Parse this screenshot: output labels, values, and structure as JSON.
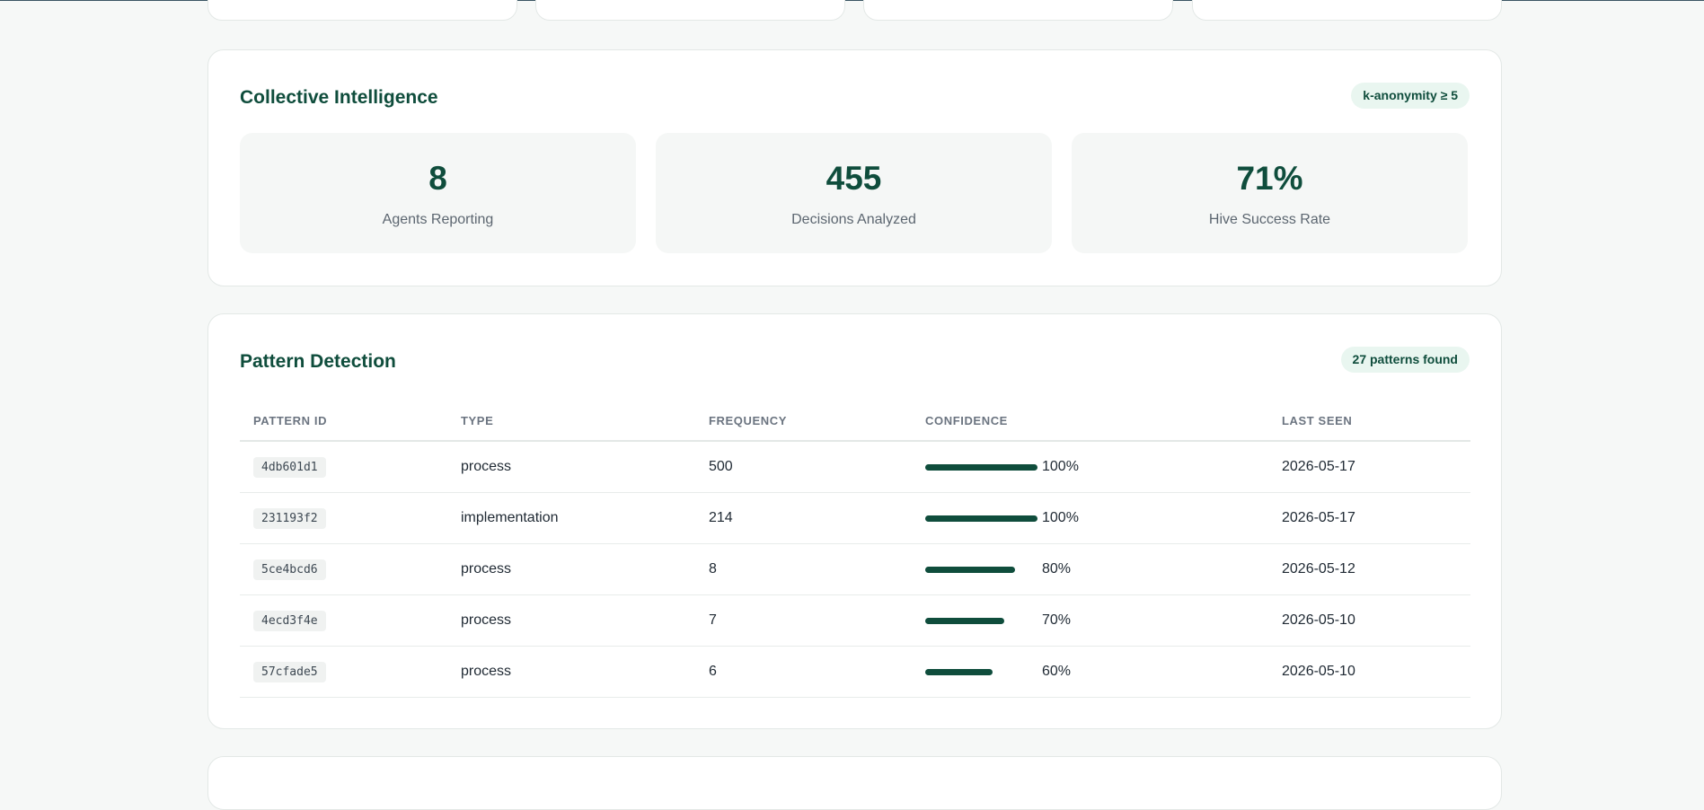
{
  "collective": {
    "title": "Collective Intelligence",
    "badge": "k-anonymity ≥ 5",
    "metrics": [
      {
        "value": "8",
        "label": "Agents Reporting"
      },
      {
        "value": "455",
        "label": "Decisions Analyzed"
      },
      {
        "value": "71%",
        "label": "Hive Success Rate"
      }
    ]
  },
  "patterns": {
    "title": "Pattern Detection",
    "badge": "27 patterns found",
    "columns": [
      "PATTERN ID",
      "TYPE",
      "FREQUENCY",
      "CONFIDENCE",
      "LAST SEEN"
    ],
    "rows": [
      {
        "id": "4db601d1",
        "type": "process",
        "frequency": "500",
        "confidence": "100%",
        "confidence_value": 1.0,
        "last_seen": "2026-05-17"
      },
      {
        "id": "231193f2",
        "type": "implementation",
        "frequency": "214",
        "confidence": "100%",
        "confidence_value": 1.0,
        "last_seen": "2026-05-17"
      },
      {
        "id": "5ce4bcd6",
        "type": "process",
        "frequency": "8",
        "confidence": "80%",
        "confidence_value": 0.8,
        "last_seen": "2026-05-12"
      },
      {
        "id": "4ecd3f4e",
        "type": "process",
        "frequency": "7",
        "confidence": "70%",
        "confidence_value": 0.7,
        "last_seen": "2026-05-10"
      },
      {
        "id": "57cfade5",
        "type": "process",
        "frequency": "6",
        "confidence": "60%",
        "confidence_value": 0.6,
        "last_seen": "2026-05-10"
      }
    ]
  },
  "colors": {
    "accent": "#0f4d3c",
    "badge_bg": "#e9f6f0",
    "page_bg": "#f6f8f7"
  }
}
